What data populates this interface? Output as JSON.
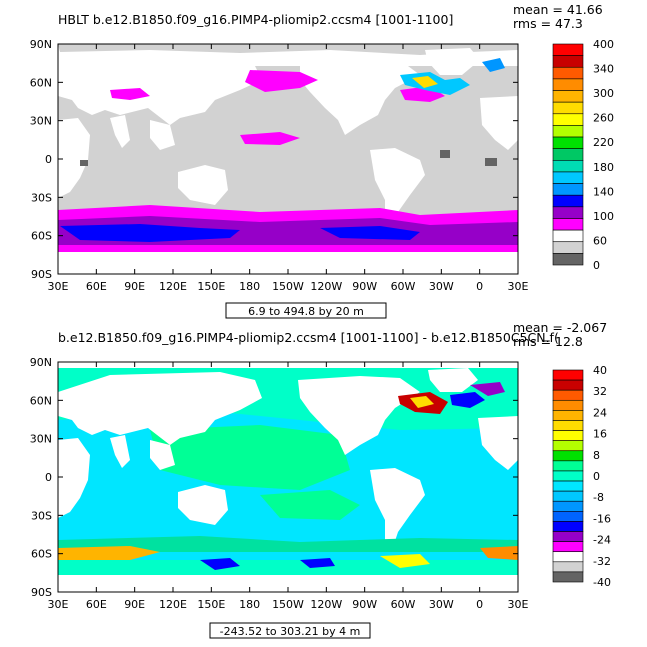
{
  "panels": [
    {
      "title": "HBLT b.e12.B1850.f09_g16.PIMP4-pliomip2.ccsm4 [1001-1100]",
      "mean": "mean = 41.66",
      "rms": "rms = 47.3",
      "range_label": "6.9 to 494.8 by 20 m",
      "colorbar_labels": [
        "400",
        "340",
        "300",
        "260",
        "220",
        "180",
        "140",
        "100",
        "60",
        "0"
      ],
      "colorbar_colors": [
        "#ff0000",
        "#c80000",
        "#ff5a00",
        "#ff8c00",
        "#ffb400",
        "#ffdc00",
        "#ffff00",
        "#b4ff00",
        "#00e100",
        "#00c864",
        "#00dcb4",
        "#00c8ff",
        "#0096ff",
        "#0000ff",
        "#9600c8",
        "#ff00ff",
        "#ffffff",
        "#d2d2d2",
        "#646464"
      ]
    },
    {
      "title": "b.e12.B1850.f09_g16.PIMP4-pliomip2.ccsm4 [1001-1100] - b.e12.B1850C5CN.f(",
      "mean": "mean = -2.067",
      "rms": "rms = 12.8",
      "range_label": "-243.52 to 303.21 by 4 m",
      "colorbar_labels": [
        "40",
        "32",
        "24",
        "16",
        "8",
        "0",
        "-8",
        "-16",
        "-24",
        "-32",
        "-40"
      ],
      "colorbar_colors": [
        "#ff0000",
        "#c80000",
        "#ff5a00",
        "#ff8c00",
        "#ffb400",
        "#ffdc00",
        "#ffff00",
        "#b4ff00",
        "#00e100",
        "#00ff96",
        "#00ffc8",
        "#00e6ff",
        "#00c8ff",
        "#0096ff",
        "#0064ff",
        "#0000ff",
        "#9600c8",
        "#ff00ff",
        "#ffffff",
        "#d2d2d2",
        "#646464"
      ]
    }
  ],
  "chart_data": [
    {
      "type": "heatmap",
      "title": "HBLT b.e12.B1850.f09_g16.PIMP4-pliomip2.ccsm4 [1001-1100]",
      "subtitle": "6.9 to 494.8 by 20 m",
      "lat_ticks": [
        "90N",
        "60N",
        "30N",
        "0",
        "30S",
        "60S",
        "90S"
      ],
      "lon_ticks": [
        "30E",
        "60E",
        "90E",
        "120E",
        "150E",
        "180",
        "150W",
        "120W",
        "90W",
        "60W",
        "30W",
        "0",
        "30E"
      ],
      "xlim": [
        30,
        390
      ],
      "ylim": [
        -90,
        90
      ],
      "mean": 41.66,
      "rms": 47.3,
      "colorbar_ticks": [
        400,
        340,
        300,
        260,
        220,
        180,
        140,
        100,
        60,
        0
      ]
    },
    {
      "type": "heatmap",
      "title": "b.e12.B1850.f09_g16.PIMP4-pliomip2.ccsm4 [1001-1100] - b.e12.B1850C5CN.f(",
      "subtitle": "-243.52 to 303.21 by 4 m",
      "lat_ticks": [
        "90N",
        "60N",
        "30N",
        "0",
        "30S",
        "60S",
        "90S"
      ],
      "lon_ticks": [
        "30E",
        "60E",
        "90E",
        "120E",
        "150E",
        "180",
        "150W",
        "120W",
        "90W",
        "60W",
        "30W",
        "0",
        "30E"
      ],
      "xlim": [
        30,
        390
      ],
      "ylim": [
        -90,
        90
      ],
      "mean": -2.067,
      "rms": 12.8,
      "colorbar_ticks": [
        40,
        32,
        24,
        16,
        8,
        0,
        -8,
        -16,
        -24,
        -32,
        -40
      ]
    }
  ]
}
